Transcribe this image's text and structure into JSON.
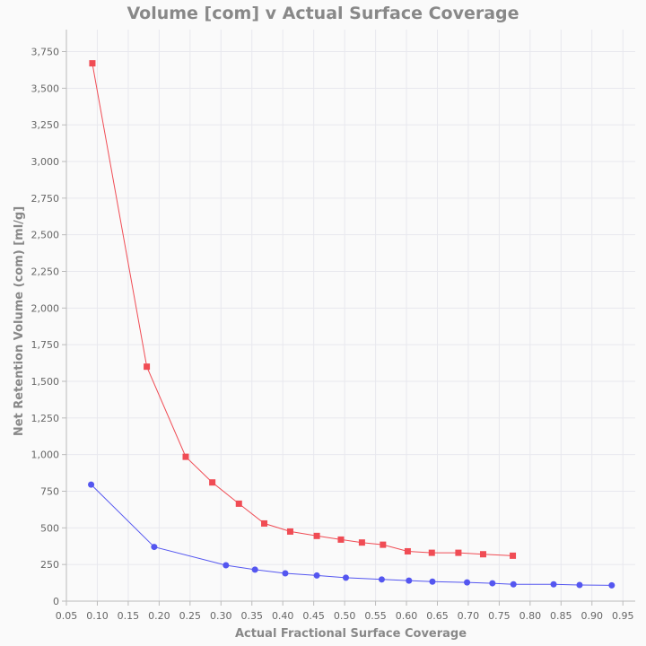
{
  "chart_data": {
    "type": "line",
    "title": "Volume [com] v Actual Surface Coverage",
    "xlabel": "Actual Fractional Surface Coverage",
    "ylabel": "Net Retention Volume (com) [ml/g]",
    "xlim": [
      0.05,
      0.97
    ],
    "ylim": [
      0,
      3900
    ],
    "x_ticks": [
      0.05,
      0.1,
      0.15,
      0.2,
      0.25,
      0.3,
      0.35,
      0.4,
      0.45,
      0.5,
      0.55,
      0.6,
      0.65,
      0.7,
      0.75,
      0.8,
      0.85,
      0.9,
      0.95
    ],
    "x_tick_labels": [
      "0.05",
      "0.10",
      "0.15",
      "0.20",
      "0.25",
      "0.30",
      "0.35",
      "0.40",
      "0.45",
      "0.50",
      "0.55",
      "0.60",
      "0.65",
      "0.70",
      "0.75",
      "0.80",
      "0.85",
      "0.90",
      "0.95"
    ],
    "y_ticks": [
      0,
      250,
      500,
      750,
      1000,
      1250,
      1500,
      1750,
      2000,
      2250,
      2500,
      2750,
      3000,
      3250,
      3500,
      3750
    ],
    "y_tick_labels": [
      "0",
      "250",
      "500",
      "750",
      "1,000",
      "1,250",
      "1,500",
      "1,750",
      "2,000",
      "2,250",
      "2,500",
      "2,750",
      "3,000",
      "3,250",
      "3,500",
      "3,750"
    ],
    "grid": true,
    "series": [
      {
        "color": "#f04c54",
        "marker": "square",
        "x": [
          0.092,
          0.18,
          0.243,
          0.286,
          0.329,
          0.37,
          0.412,
          0.455,
          0.494,
          0.528,
          0.562,
          0.602,
          0.641,
          0.684,
          0.724,
          0.772
        ],
        "y": [
          3670,
          1600,
          985,
          810,
          665,
          530,
          475,
          445,
          420,
          400,
          385,
          340,
          330,
          330,
          320,
          310
        ]
      },
      {
        "color": "#5456f0",
        "marker": "circle",
        "x": [
          0.09,
          0.192,
          0.308,
          0.355,
          0.404,
          0.455,
          0.502,
          0.56,
          0.604,
          0.642,
          0.698,
          0.739,
          0.773,
          0.838,
          0.88,
          0.932
        ],
        "y": [
          795,
          370,
          245,
          215,
          190,
          175,
          160,
          148,
          140,
          133,
          128,
          122,
          115,
          115,
          110,
          108
        ]
      }
    ]
  }
}
